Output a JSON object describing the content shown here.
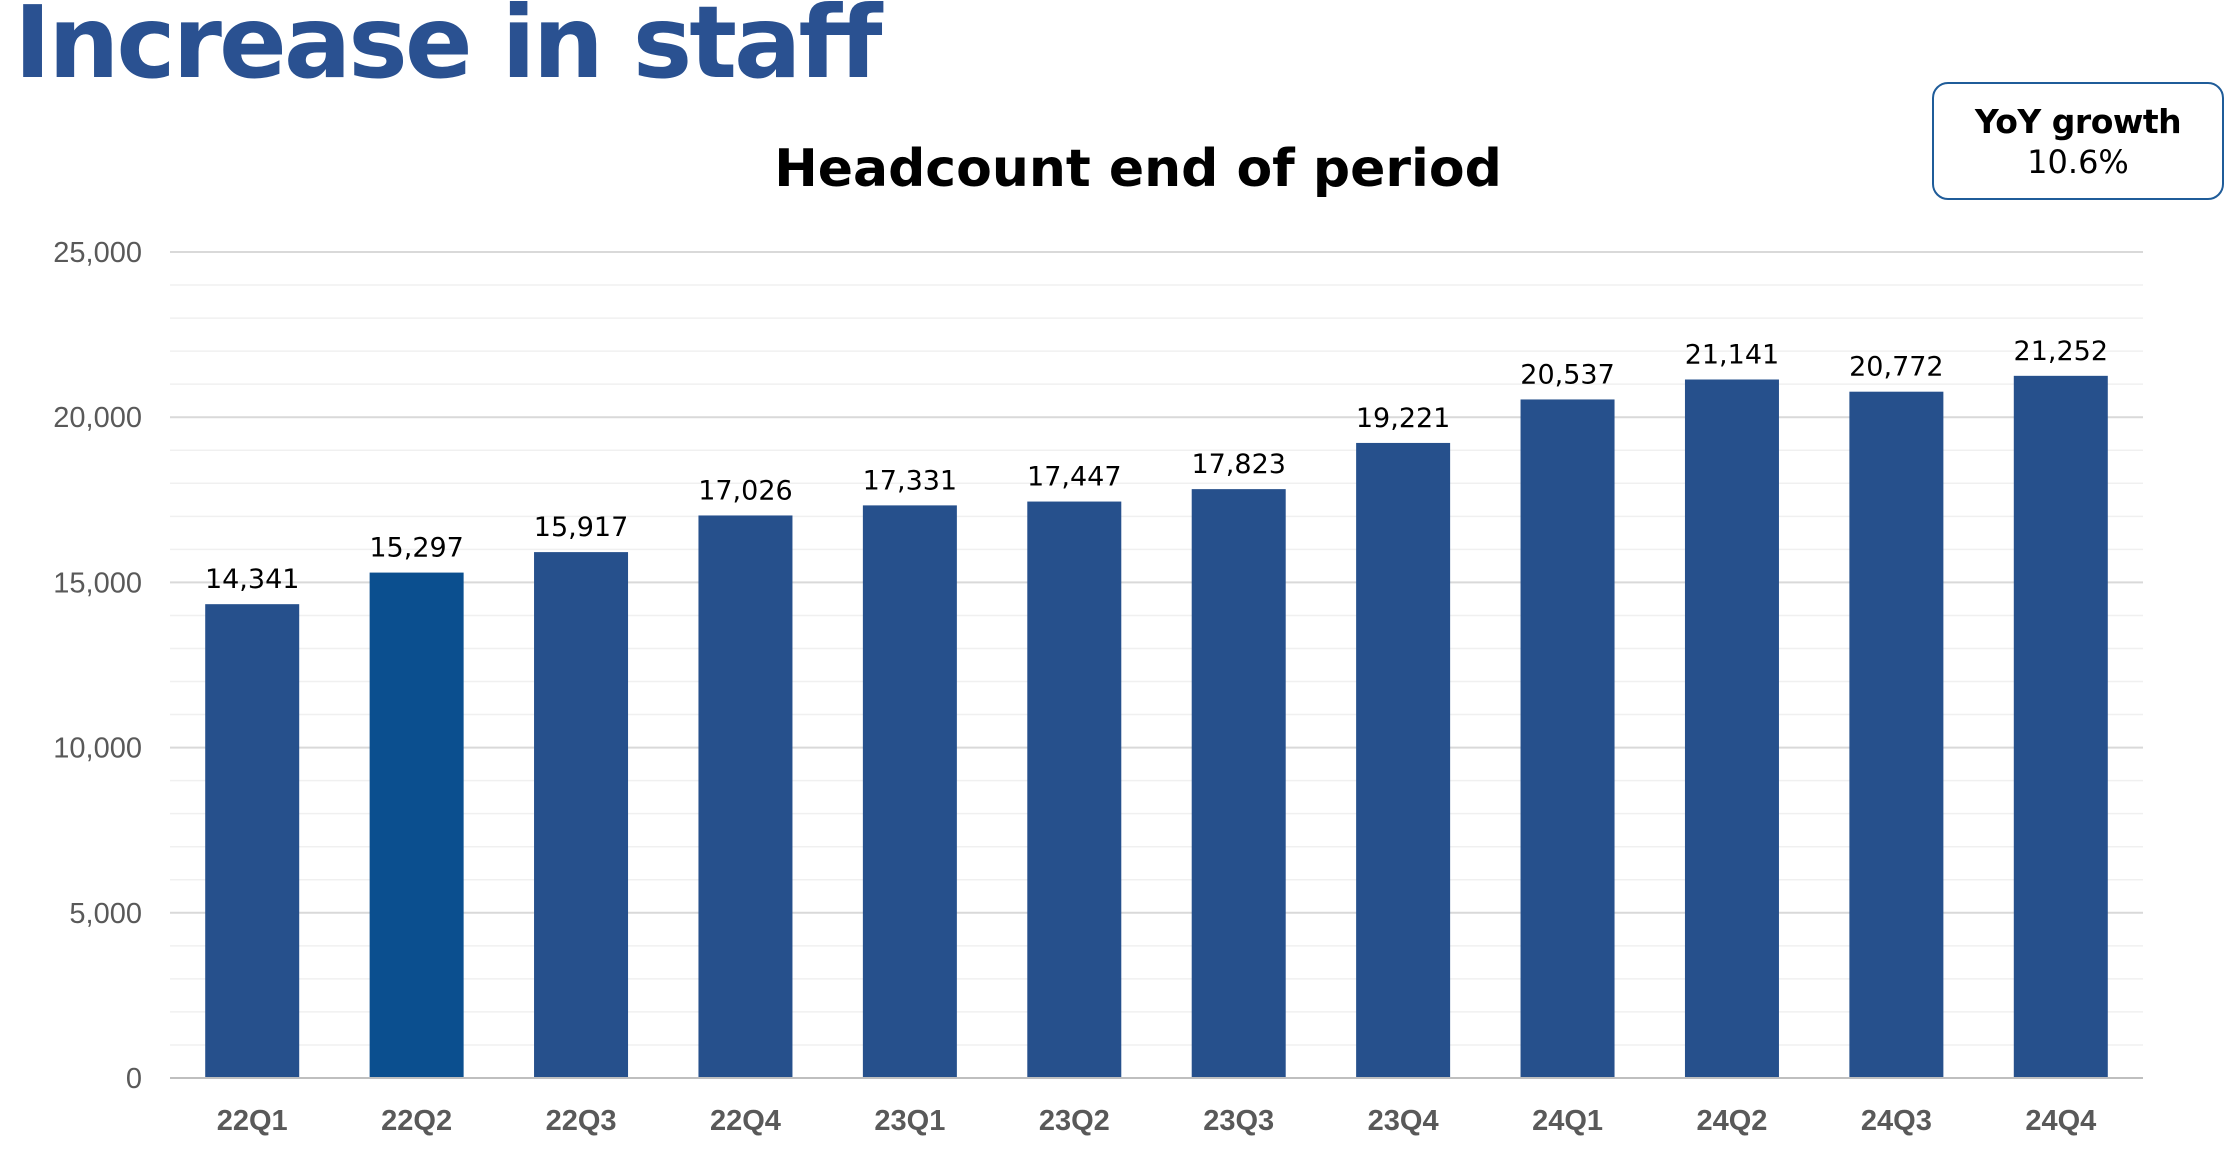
{
  "slide": {
    "title": "Increase in staff"
  },
  "callout": {
    "label": "YoY growth",
    "value": "10.6%"
  },
  "colors": {
    "title": "#2a5191",
    "bar": "#26508c",
    "bar_highlight": "#0b4f8f",
    "callout_border": "#1f5c99",
    "gridline": "#d9d9d9",
    "minor_gridline": "#f0f0f0",
    "tick_text": "#595959"
  },
  "chart_data": {
    "type": "bar",
    "title": "Headcount end of period",
    "xlabel": "",
    "ylabel": "",
    "categories": [
      "22Q1",
      "22Q2",
      "22Q3",
      "22Q4",
      "23Q1",
      "23Q2",
      "23Q3",
      "23Q4",
      "24Q1",
      "24Q2",
      "24Q3",
      "24Q4"
    ],
    "values": [
      14341,
      15297,
      15917,
      17026,
      17331,
      17447,
      17823,
      19221,
      20537,
      21141,
      20772,
      21252
    ],
    "value_labels": [
      "14,341",
      "15,297",
      "15,917",
      "17,026",
      "17,331",
      "17,447",
      "17,823",
      "19,221",
      "20,537",
      "21,141",
      "20,772",
      "21,252"
    ],
    "ylim": [
      0,
      25000
    ],
    "yticks": [
      0,
      5000,
      10000,
      15000,
      20000,
      25000
    ],
    "ytick_labels": [
      "0",
      "5,000",
      "10,000",
      "15,000",
      "20,000",
      "25,000"
    ],
    "highlight_index": 1,
    "grid": true,
    "legend": "none"
  }
}
